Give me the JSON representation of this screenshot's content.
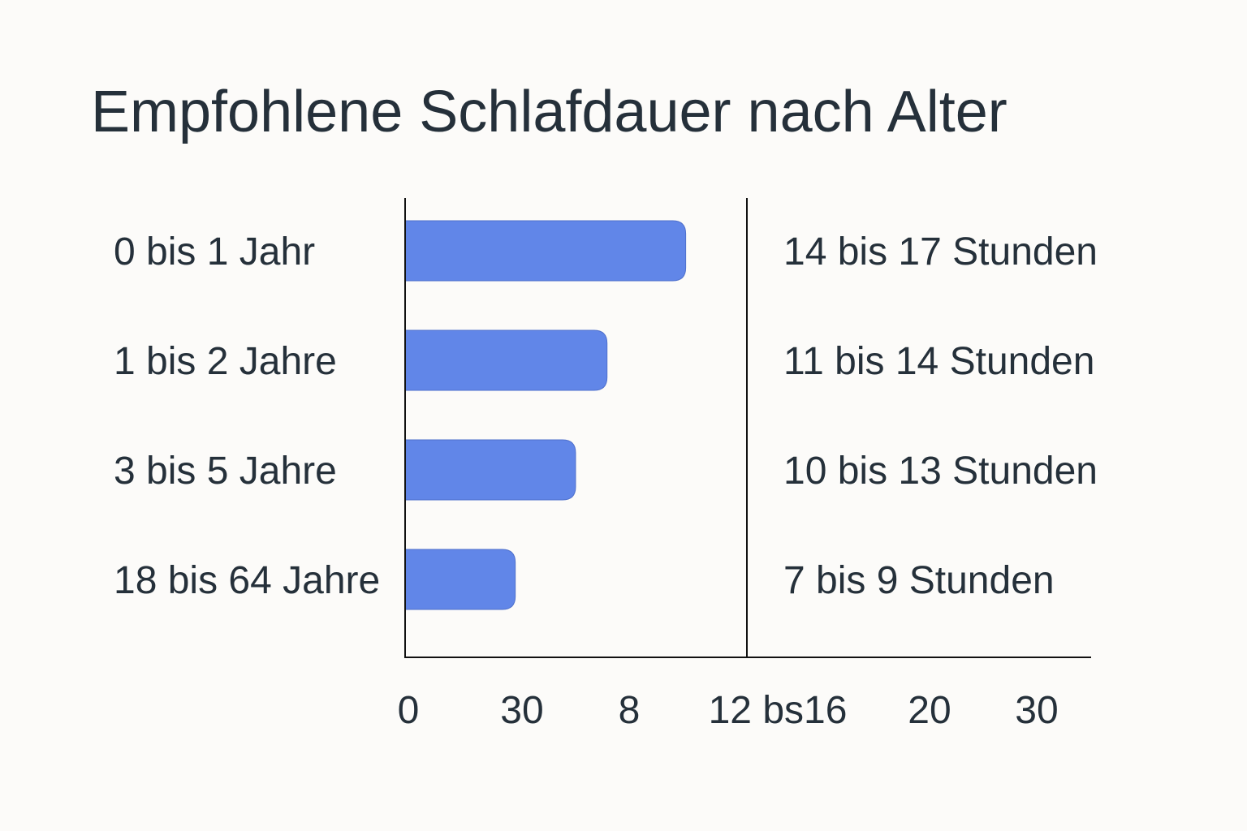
{
  "chart_data": {
    "type": "bar",
    "orientation": "horizontal",
    "title": "Empfohlene Schlafdauer nach Alter",
    "categories": [
      "0 bis 1 Jahr",
      "1 bis 2 Jahre",
      "3 bis 5 Jahre",
      "18 bis 64 Jahre"
    ],
    "values": [
      10.7,
      7.7,
      6.5,
      4.2
    ],
    "value_labels": [
      "14 bis 17 Stunden",
      "11 bis 14 Stunden",
      "10 bis 13 Stunden",
      "7 bis 9 Stunden"
    ],
    "x_tick_labels": [
      "0",
      "30",
      "8",
      "12 bs16",
      "20",
      "30"
    ],
    "xlabel": "",
    "ylabel": "",
    "grid": false,
    "legend": "none",
    "bar_color": "#6186E8"
  }
}
